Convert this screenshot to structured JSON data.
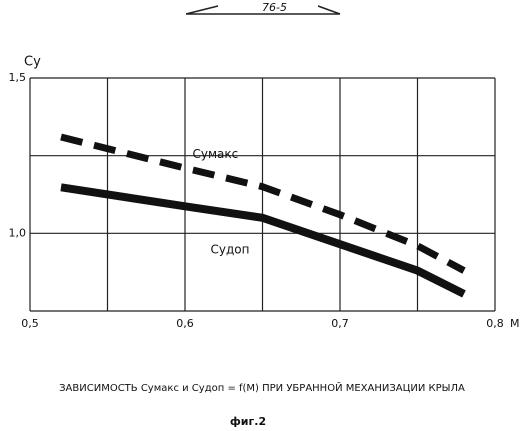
{
  "stamp": "76-5",
  "chart_data": {
    "type": "line",
    "ylabel": "Cу",
    "xlabel": "M",
    "xlim": [
      0.5,
      0.8
    ],
    "xticks": [
      {
        "value": 0.5,
        "label": "0,5"
      },
      {
        "value": 0.55,
        "label": null
      },
      {
        "value": 0.6,
        "label": "0,6"
      },
      {
        "value": 0.65,
        "label": null
      },
      {
        "value": 0.7,
        "label": "0,7"
      },
      {
        "value": 0.75,
        "label": null
      },
      {
        "value": 0.8,
        "label": "0,8"
      }
    ],
    "ylim": [
      0.75,
      1.5
    ],
    "yticks": [
      {
        "value": 0.75,
        "label": null
      },
      {
        "value": 1.0,
        "label": "1,0"
      },
      {
        "value": 1.25,
        "label": null
      },
      {
        "value": 1.5,
        "label": "1,5"
      }
    ],
    "grid": true,
    "x": [
      0.52,
      0.6,
      0.65,
      0.7,
      0.75,
      0.78
    ],
    "series": [
      {
        "name": "Cумакс",
        "color": "#111",
        "dashed": true,
        "values": [
          1.31,
          1.21,
          1.15,
          1.06,
          0.96,
          0.88
        ]
      },
      {
        "name": "Cудоп",
        "color": "#111",
        "dashed": false,
        "values": [
          1.148,
          1.087,
          1.05,
          0.965,
          0.88,
          0.805
        ]
      }
    ],
    "caption": "ЗАВИСИМОСТЬ Cумакс и Cудоп = f(M) ПРИ УБРАННОЙ МЕХАНИЗАЦИИ КРЫЛА",
    "figure_label": "фиг.2"
  }
}
